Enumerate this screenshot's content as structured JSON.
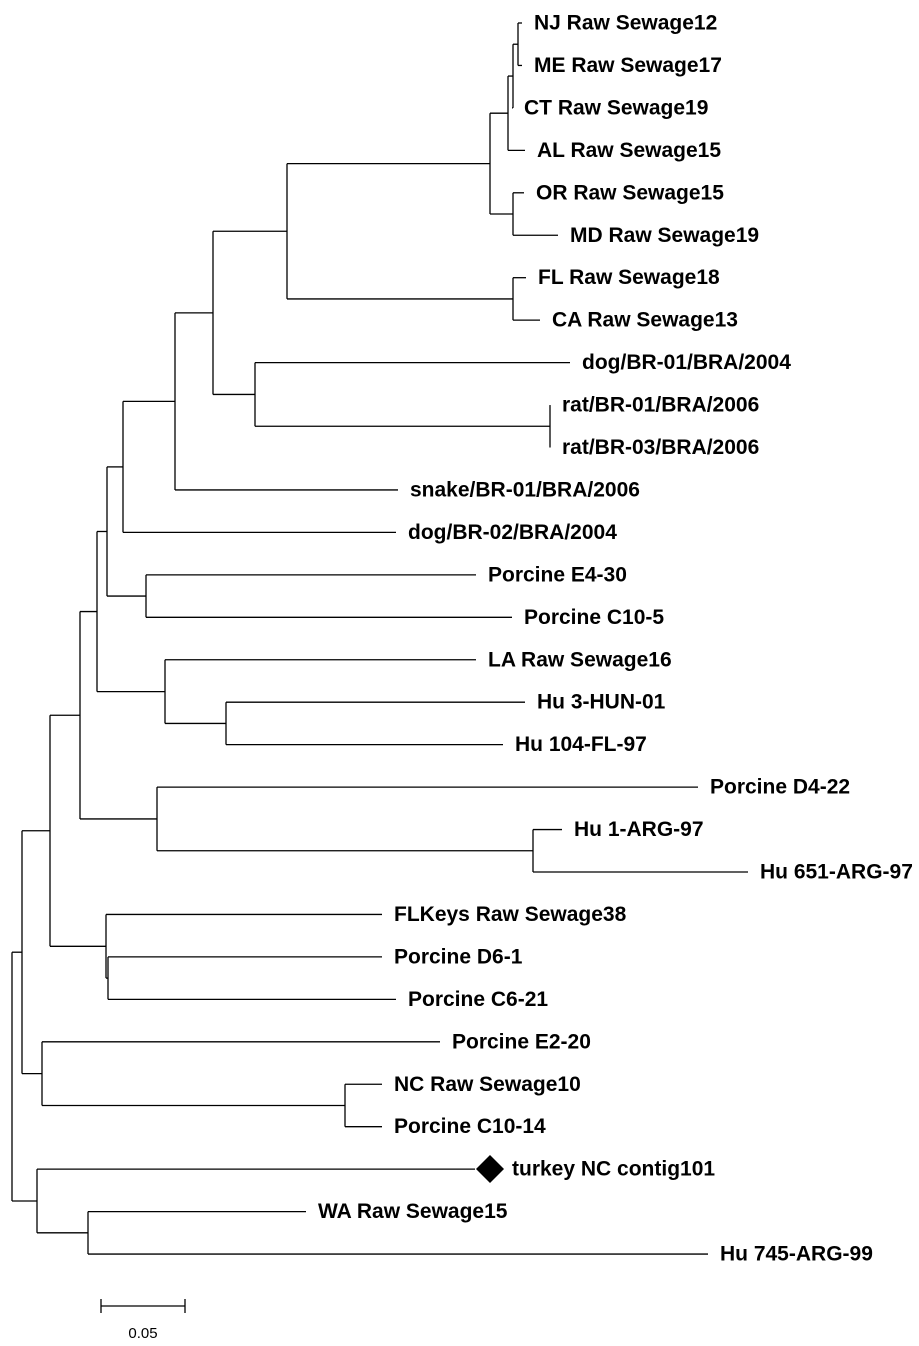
{
  "leaves": [
    "NJ Raw Sewage12",
    "ME Raw Sewage17",
    "CT Raw Sewage19",
    "AL Raw Sewage15",
    "OR Raw Sewage15",
    "MD Raw Sewage19",
    "FL Raw Sewage18",
    "CA Raw Sewage13",
    "dog/BR-01/BRA/2004",
    "rat/BR-01/BRA/2006",
    "rat/BR-03/BRA/2006",
    "snake/BR-01/BRA/2006",
    "dog/BR-02/BRA/2004",
    "Porcine E4-30",
    "Porcine C10-5",
    "LA Raw Sewage16",
    "Hu 3-HUN-01",
    "Hu 104-FL-97",
    "Porcine D4-22",
    "Hu 1-ARG-97",
    "Hu 651-ARG-97",
    "FLKeys Raw Sewage38",
    "Porcine D6-1",
    "Porcine C6-21",
    "Porcine E2-20",
    "NC Raw Sewage10",
    "Porcine C10-14",
    "turkey NC contig101",
    "WA Raw Sewage15",
    "Hu 745-ARG-99"
  ],
  "scale_bar": {
    "label": "0.05"
  }
}
